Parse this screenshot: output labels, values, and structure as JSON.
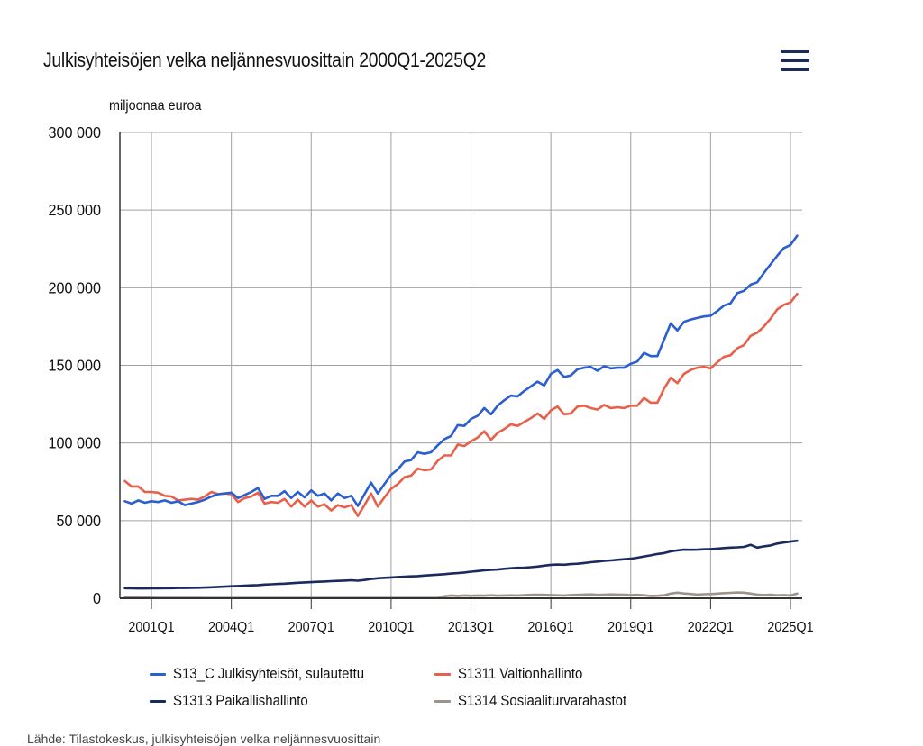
{
  "header": {
    "title": "Julkisyhteisöjen velka neljännesvuosittain 2000Q1-2025Q2",
    "menu_icon": "hamburger-menu-icon"
  },
  "source_line": "Lähde: Tilastokeskus, julkisyhteisöjen velka neljännesvuosittain",
  "chart_data": {
    "type": "line",
    "title": "Julkisyhteisöjen velka neljännesvuosittain 2000Q1-2025Q2",
    "xlabel": "",
    "ylabel": "miljoonaa euroa",
    "ylim": [
      0,
      300000
    ],
    "yticks": [
      0,
      50000,
      100000,
      150000,
      200000,
      250000,
      300000
    ],
    "ytick_labels": [
      "0",
      "50 000",
      "100 000",
      "150 000",
      "200 000",
      "250 000",
      "300 000"
    ],
    "xtick_labels": [
      "2001Q1",
      "2004Q1",
      "2007Q1",
      "2010Q1",
      "2013Q1",
      "2016Q1",
      "2019Q1",
      "2022Q1",
      "2025Q1"
    ],
    "xtick_quarter_index": [
      4,
      16,
      28,
      40,
      52,
      64,
      76,
      88,
      100
    ],
    "grid": true,
    "legend_position": "bottom",
    "x_start": "2000Q1",
    "x_end": "2025Q2",
    "num_points": 102,
    "series": [
      {
        "name": "S13_C Julkisyhteisöt, sulautettu",
        "color": "#2b5fd0",
        "values": [
          62500,
          61000,
          63000,
          61500,
          62500,
          62000,
          63000,
          61500,
          62500,
          60000,
          61000,
          62000,
          63500,
          65500,
          67000,
          67500,
          68000,
          64500,
          66500,
          68500,
          71000,
          64000,
          66000,
          66000,
          69000,
          64500,
          68500,
          65000,
          69500,
          66000,
          67500,
          63000,
          67500,
          64500,
          66000,
          59500,
          67000,
          74500,
          67500,
          73500,
          79500,
          83000,
          88000,
          89000,
          94000,
          93000,
          94000,
          98500,
          102500,
          104500,
          111500,
          111000,
          115500,
          117500,
          122500,
          118500,
          124000,
          127500,
          130500,
          130000,
          133500,
          136500,
          139500,
          137000,
          144500,
          147000,
          142500,
          143500,
          147500,
          148500,
          149000,
          146500,
          149500,
          148000,
          148500,
          148500,
          151000,
          152500,
          158000,
          156000,
          156000,
          166500,
          177000,
          172500,
          178000,
          179500,
          180500,
          181500,
          182000,
          185000,
          188500,
          190000,
          196500,
          198000,
          202000,
          203500,
          209500,
          215000,
          220500,
          225500,
          227500,
          233500
        ]
      },
      {
        "name": "S1311 Valtionhallinto",
        "color": "#e8604a",
        "values": [
          75500,
          72000,
          72000,
          68500,
          68500,
          68000,
          66000,
          65500,
          63000,
          63500,
          64000,
          63500,
          65500,
          68500,
          67000,
          67500,
          67000,
          62000,
          64500,
          65500,
          68000,
          61000,
          62000,
          61500,
          64000,
          59000,
          63500,
          59000,
          63000,
          59000,
          60500,
          56500,
          60000,
          58500,
          60000,
          53000,
          60000,
          67500,
          59000,
          65000,
          70500,
          73500,
          78000,
          79000,
          83500,
          82500,
          83000,
          88500,
          92000,
          92000,
          99000,
          98000,
          101000,
          103500,
          107500,
          102000,
          106500,
          109000,
          112000,
          111000,
          113500,
          116000,
          119000,
          115500,
          121000,
          123500,
          118500,
          119000,
          123500,
          124000,
          122500,
          121500,
          124500,
          122500,
          123000,
          122500,
          124000,
          124000,
          129000,
          126000,
          126000,
          135000,
          142000,
          138500,
          144500,
          147000,
          148500,
          149000,
          148000,
          152000,
          155500,
          156500,
          161000,
          163000,
          169000,
          171000,
          175000,
          180000,
          186000,
          189000,
          190500,
          196000
        ]
      },
      {
        "name": "S1313 Paikallishallinto",
        "color": "#1a2a5e",
        "values": [
          6500,
          6400,
          6300,
          6300,
          6400,
          6400,
          6500,
          6500,
          6600,
          6600,
          6700,
          6800,
          6900,
          7100,
          7300,
          7500,
          7700,
          7900,
          8100,
          8300,
          8500,
          8800,
          9000,
          9200,
          9400,
          9700,
          10000,
          10200,
          10400,
          10600,
          10800,
          11000,
          11200,
          11400,
          11600,
          11300,
          11800,
          12400,
          12900,
          13200,
          13400,
          13700,
          13900,
          14100,
          14300,
          14600,
          14900,
          15200,
          15500,
          15900,
          16200,
          16600,
          17100,
          17500,
          18000,
          18300,
          18500,
          19000,
          19300,
          19600,
          19700,
          20000,
          20400,
          21000,
          21500,
          21700,
          21600,
          22000,
          22200,
          22700,
          23200,
          23600,
          24100,
          24400,
          24800,
          25100,
          25500,
          26100,
          26900,
          27600,
          28500,
          29100,
          30200,
          30800,
          31300,
          31200,
          31300,
          31500,
          31700,
          32000,
          32300,
          32600,
          32800,
          33100,
          34400,
          32600,
          33400,
          34000,
          35200,
          35900,
          36500,
          37000
        ]
      },
      {
        "name": "S1314 Sosiaaliturvarahastot",
        "color": "#9e928c",
        "values": [
          500,
          500,
          500,
          400,
          400,
          300,
          300,
          300,
          300,
          300,
          300,
          300,
          200,
          200,
          200,
          200,
          200,
          200,
          200,
          200,
          200,
          200,
          200,
          200,
          200,
          200,
          200,
          200,
          200,
          200,
          200,
          200,
          200,
          200,
          200,
          200,
          200,
          200,
          200,
          200,
          200,
          200,
          200,
          200,
          200,
          200,
          200,
          200,
          1300,
          1800,
          1500,
          1800,
          1600,
          1800,
          1700,
          1900,
          1700,
          1800,
          1900,
          1800,
          2000,
          2200,
          2300,
          2200,
          2100,
          1900,
          1800,
          2100,
          2200,
          2400,
          2500,
          2200,
          2300,
          2500,
          2400,
          2300,
          2100,
          2200,
          1900,
          1500,
          1600,
          1900,
          3000,
          3600,
          3100,
          2800,
          2400,
          2600,
          2700,
          3000,
          3300,
          3500,
          3700,
          3600,
          3000,
          2400,
          2100,
          2300,
          1900,
          2100,
          1800,
          3000
        ]
      }
    ]
  },
  "legend": {
    "items": [
      {
        "label": "S13_C Julkisyhteisöt, sulautettu",
        "color": "#2b5fd0"
      },
      {
        "label": "S1311 Valtionhallinto",
        "color": "#e8604a"
      },
      {
        "label": "S1313 Paikallishallinto",
        "color": "#1a2a5e"
      },
      {
        "label": "S1314 Sosiaaliturvarahastot",
        "color": "#9e928c"
      }
    ]
  }
}
